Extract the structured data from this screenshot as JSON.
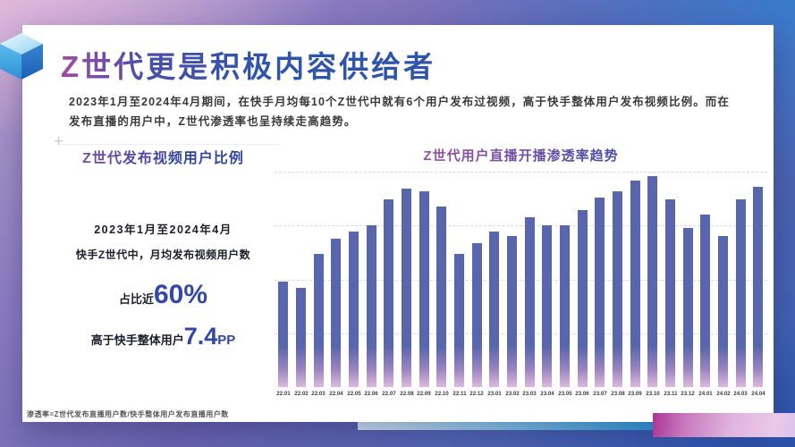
{
  "slide": {
    "title": "Z世代更是积极内容供给者",
    "intro": "2023年1月至2024年4月期间，在快手月均每10个Z世代中就有6个用户发布过视频，高于快手整体用户发布视频比例。而在发布直播的用户中，Z世代渗透率也呈持续走高趋势。",
    "footnote": "渗透率=Z世代发布直播用户数/快手整体用户发布直播用户数"
  },
  "left_panel": {
    "title": "Z世代发布视频用户比例",
    "period": "2023年1月至2024年4月",
    "desc": "快手Z世代中，月均发布视频用户数",
    "stat1_prefix": "占比近",
    "stat1_value": "60%",
    "stat2_prefix": "高于快手整体用户",
    "stat2_value": "7.4",
    "stat2_unit": "PP"
  },
  "chart_data": {
    "type": "bar",
    "title": "Z世代用户直播开播渗透率趋势",
    "categories": [
      "22.01",
      "22.02",
      "22.03",
      "22.04",
      "22.05",
      "22.06",
      "22.07",
      "22.08",
      "22.09",
      "22.10",
      "22.11",
      "22.12",
      "23.01",
      "23.02",
      "23.03",
      "23.04",
      "23.05",
      "23.06",
      "23.07",
      "23.08",
      "23.09",
      "23.10",
      "23.11",
      "23.12",
      "24.01",
      "24.02",
      "24.03",
      "24.04"
    ],
    "values": [
      49,
      46,
      62,
      69,
      72,
      75,
      87,
      92,
      91,
      84,
      62,
      67,
      72,
      70,
      79,
      75,
      75,
      82,
      88,
      91,
      96,
      98,
      87,
      74,
      80,
      70,
      87,
      93
    ],
    "xlabel": "",
    "ylabel": "",
    "ylim": [
      0,
      100
    ],
    "grid": "horizontal-dashed",
    "legend": "none"
  },
  "colors": {
    "title_grad_a": "#a14ba1",
    "title_grad_b": "#4b4ea7",
    "title_grad_c": "#2f55ab",
    "panel_title_grad_a": "#8e4fa5",
    "panel_title_grad_b": "#3246a0",
    "chart_title_grad_a": "#b4509f",
    "chart_title_grad_b": "#3a4fa5",
    "bar_top": "#5766ad",
    "bar_mid": "#9a84c0",
    "bar_bottom": "#debade",
    "stat_accent": "#3347a6"
  }
}
